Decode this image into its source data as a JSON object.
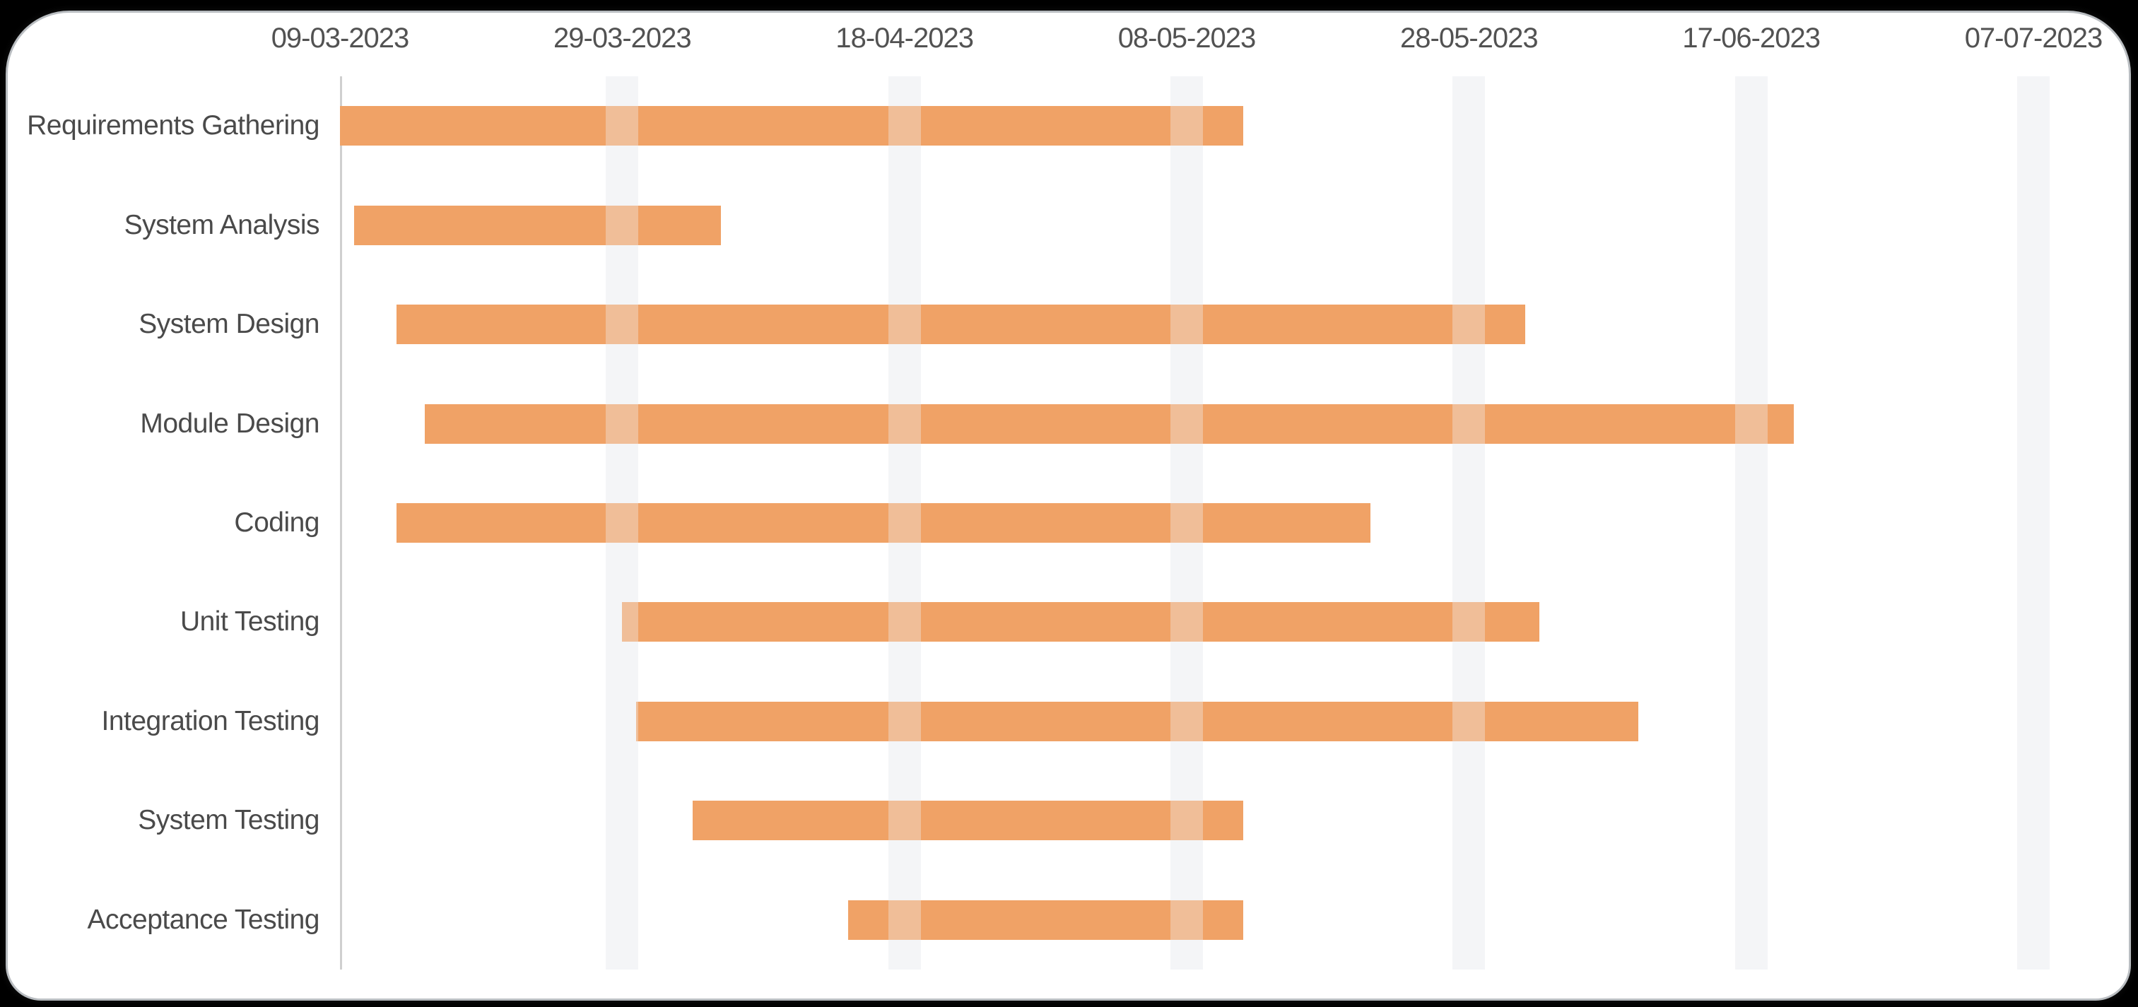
{
  "window": {
    "background": "#000000"
  },
  "card": {
    "background": "#FFFFFF",
    "border_color": "#B9BDC1"
  },
  "chart_data": {
    "type": "bar",
    "variant": "horizontal-gantt",
    "title": "",
    "xlabel": "",
    "ylabel": "",
    "legend": "none",
    "x_axis": {
      "position": "top",
      "tick_labels": [
        "09-03-2023",
        "29-03-2023",
        "18-04-2023",
        "08-05-2023",
        "28-05-2023",
        "17-06-2023",
        "07-07-2023"
      ],
      "tick_interval_days": 20,
      "range_days": [
        0,
        120
      ],
      "gridlines": "wide light-gray vertical bands at every tick except the first"
    },
    "y_axis": {
      "categories": [
        "Requirements Gathering",
        "System Analysis",
        "System Design",
        "Module Design",
        "Coding",
        "Unit Testing",
        "Integration Testing",
        "System Testing",
        "Acceptance Testing"
      ]
    },
    "series": [
      {
        "task": "Requirements Gathering",
        "start_date": "09-03-2023",
        "end_date": "12-05-2023",
        "start_day": 0,
        "end_day": 64,
        "duration_days": 64
      },
      {
        "task": "System Analysis",
        "start_date": "10-03-2023",
        "end_date": "05-04-2023",
        "start_day": 1,
        "end_day": 27,
        "duration_days": 26
      },
      {
        "task": "System Design",
        "start_date": "13-03-2023",
        "end_date": "01-06-2023",
        "start_day": 4,
        "end_day": 84,
        "duration_days": 80
      },
      {
        "task": "Module Design",
        "start_date": "15-03-2023",
        "end_date": "20-06-2023",
        "start_day": 6,
        "end_day": 103,
        "duration_days": 97
      },
      {
        "task": "Coding",
        "start_date": "13-03-2023",
        "end_date": "21-05-2023",
        "start_day": 4,
        "end_day": 73,
        "duration_days": 69
      },
      {
        "task": "Unit Testing",
        "start_date": "29-03-2023",
        "end_date": "02-06-2023",
        "start_day": 20,
        "end_day": 85,
        "duration_days": 65
      },
      {
        "task": "Integration Testing",
        "start_date": "30-03-2023",
        "end_date": "09-06-2023",
        "start_day": 21,
        "end_day": 92,
        "duration_days": 71
      },
      {
        "task": "System Testing",
        "start_date": "03-04-2023",
        "end_date": "12-05-2023",
        "start_day": 25,
        "end_day": 64,
        "duration_days": 39
      },
      {
        "task": "Acceptance Testing",
        "start_date": "14-04-2023",
        "end_date": "12-05-2023",
        "start_day": 36,
        "end_day": 64,
        "duration_days": 28
      }
    ],
    "colors": {
      "bar": "#F0A266",
      "grid_band": "#F6F6F7",
      "axis_line": "#CFCFCF",
      "category_text": "#4A4A4A",
      "tick_text": "#525252"
    }
  }
}
